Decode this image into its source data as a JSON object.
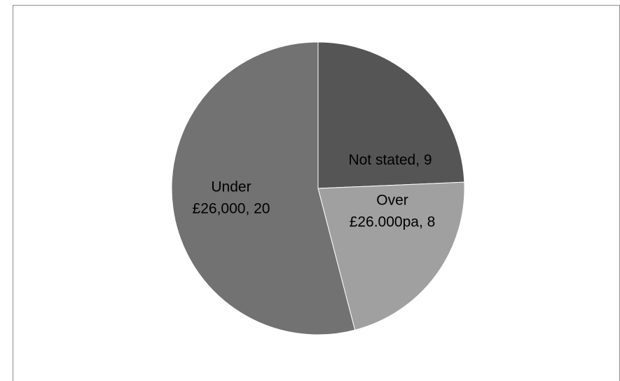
{
  "chart_data": {
    "type": "pie",
    "title": "",
    "start_angle_deg": 0,
    "direction": "clockwise",
    "slices": [
      {
        "label_lines": [
          "Not stated, 9"
        ],
        "category": "Not stated",
        "value": 9,
        "color": "#555555"
      },
      {
        "label_lines": [
          "Over",
          "£26.000pa, 8"
        ],
        "category": "Over £26.000pa",
        "value": 8,
        "color": "#a0a0a0"
      },
      {
        "label_lines": [
          "Under",
          "£26,000, 20"
        ],
        "category": "Under £26,000",
        "value": 20,
        "color": "#727272"
      }
    ],
    "legend": "none",
    "slice_border_color": "#ffffff"
  }
}
